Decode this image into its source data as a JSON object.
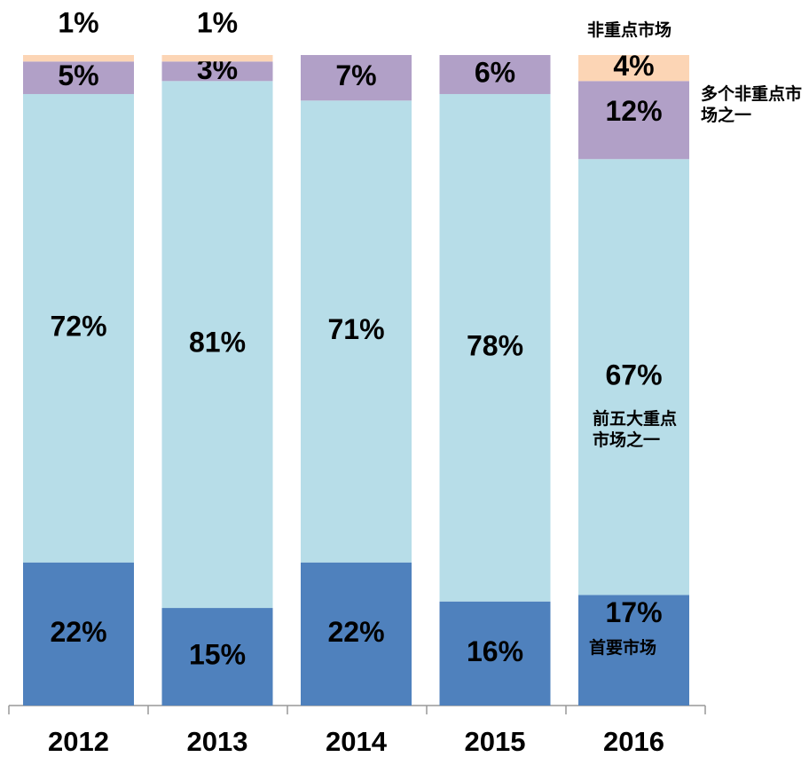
{
  "chart_data": {
    "type": "stacked_bar",
    "categories": [
      "2012",
      "2013",
      "2014",
      "2015",
      "2016"
    ],
    "series": [
      {
        "name": "首要市场",
        "color": "#4f81bd",
        "values": [
          22,
          15,
          22,
          16,
          17
        ],
        "value_labels": [
          "22%",
          "15%",
          "22%",
          "16%",
          "17%"
        ]
      },
      {
        "name": "前五大重点市场之一",
        "color": "#b7dde8",
        "values": [
          72,
          81,
          71,
          78,
          67
        ],
        "value_labels": [
          "72%",
          "81%",
          "71%",
          "78%",
          "67%"
        ]
      },
      {
        "name": "多个非重点市场之一",
        "color": "#b1a0c7",
        "values": [
          5,
          3,
          7,
          6,
          12
        ],
        "value_labels": [
          "5%",
          "3%",
          "7%",
          "6%",
          "12%"
        ]
      },
      {
        "name": "非重点市场",
        "color": "#fcd5b5",
        "values": [
          1,
          1,
          0,
          0,
          4
        ],
        "value_labels": [
          "1%",
          "1%",
          null,
          null,
          "4%"
        ]
      }
    ]
  }
}
